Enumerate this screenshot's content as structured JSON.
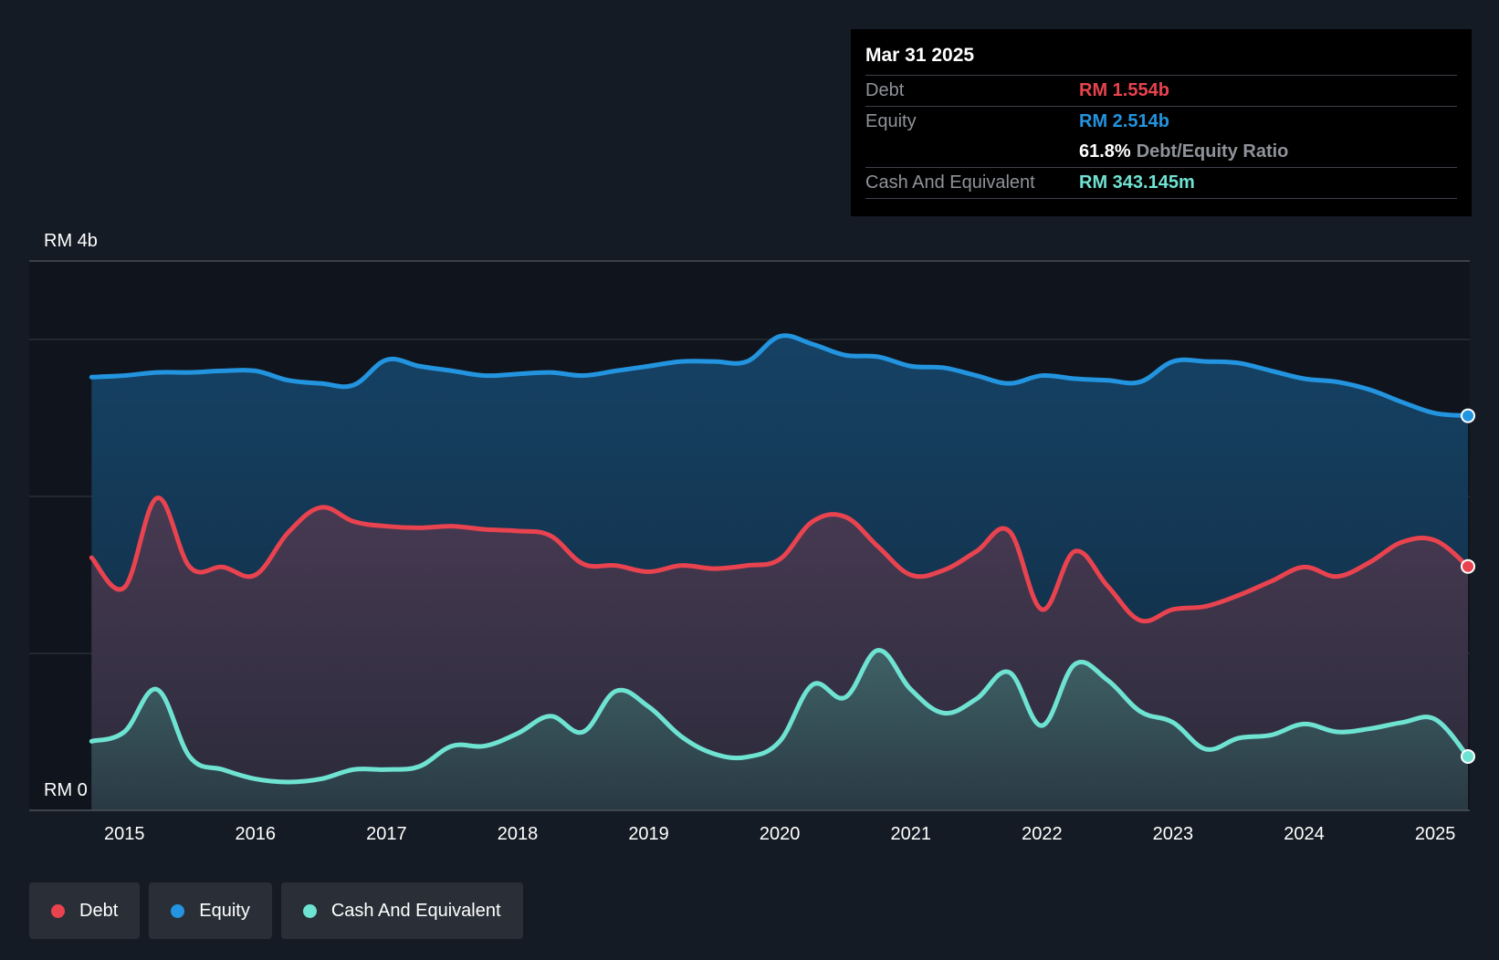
{
  "tooltip": {
    "date": "Mar 31 2025",
    "rows": [
      {
        "label": "Debt",
        "value": "RM 1.554b",
        "color": "#e8434f"
      },
      {
        "label": "Equity",
        "value": "RM 2.514b",
        "color": "#2394df"
      }
    ],
    "ratio": {
      "value": "61.8%",
      "label": "Debt/Equity Ratio"
    },
    "cash": {
      "label": "Cash And Equivalent",
      "value": "RM 343.145m",
      "color": "#6fe3d2"
    }
  },
  "legend": [
    {
      "label": "Debt",
      "color": "#e8434f"
    },
    {
      "label": "Equity",
      "color": "#2394df"
    },
    {
      "label": "Cash And Equivalent",
      "color": "#6fe3d2"
    }
  ],
  "chart_data": {
    "type": "area",
    "ylim": [
      0,
      3.5
    ],
    "y_tick_labels": [
      {
        "value": 3.5,
        "label": "RM 4b"
      },
      {
        "value": 0,
        "label": "RM 0"
      }
    ],
    "y_gridlines": [
      0,
      1,
      2,
      3,
      3.5
    ],
    "xlim": [
      2014.72,
      2025.25
    ],
    "x_ticks": [
      2015,
      2016,
      2017,
      2018,
      2019,
      2020,
      2021,
      2022,
      2023,
      2024,
      2025
    ],
    "x_tick_labels": [
      "2015",
      "2016",
      "2017",
      "2018",
      "2019",
      "2020",
      "2021",
      "2022",
      "2023",
      "2024",
      "2025"
    ],
    "series": [
      {
        "name": "Equity",
        "color": "#2394df",
        "x": [
          2014.75,
          2015.0,
          2015.25,
          2015.5,
          2015.75,
          2016.0,
          2016.25,
          2016.5,
          2016.75,
          2017.0,
          2017.25,
          2017.5,
          2017.75,
          2018.0,
          2018.25,
          2018.5,
          2018.75,
          2019.0,
          2019.25,
          2019.5,
          2019.75,
          2020.0,
          2020.25,
          2020.5,
          2020.75,
          2021.0,
          2021.25,
          2021.5,
          2021.75,
          2022.0,
          2022.25,
          2022.5,
          2022.75,
          2023.0,
          2023.25,
          2023.5,
          2023.75,
          2024.0,
          2024.25,
          2024.5,
          2024.75,
          2025.0,
          2025.25
        ],
        "values": [
          2.76,
          2.77,
          2.79,
          2.79,
          2.8,
          2.8,
          2.74,
          2.72,
          2.71,
          2.87,
          2.83,
          2.8,
          2.77,
          2.78,
          2.79,
          2.77,
          2.8,
          2.83,
          2.86,
          2.86,
          2.86,
          3.02,
          2.97,
          2.9,
          2.89,
          2.83,
          2.82,
          2.77,
          2.72,
          2.77,
          2.75,
          2.74,
          2.73,
          2.86,
          2.86,
          2.85,
          2.8,
          2.75,
          2.73,
          2.68,
          2.6,
          2.53,
          2.514
        ]
      },
      {
        "name": "Debt",
        "color": "#e8434f",
        "x": [
          2014.75,
          2015.0,
          2015.25,
          2015.5,
          2015.75,
          2016.0,
          2016.25,
          2016.5,
          2016.75,
          2017.0,
          2017.25,
          2017.5,
          2017.75,
          2018.0,
          2018.25,
          2018.5,
          2018.75,
          2019.0,
          2019.25,
          2019.5,
          2019.75,
          2020.0,
          2020.25,
          2020.5,
          2020.75,
          2021.0,
          2021.25,
          2021.5,
          2021.75,
          2022.0,
          2022.25,
          2022.5,
          2022.75,
          2023.0,
          2023.25,
          2023.5,
          2023.75,
          2024.0,
          2024.25,
          2024.5,
          2024.75,
          2025.0,
          2025.25
        ],
        "values": [
          1.61,
          1.42,
          1.99,
          1.55,
          1.55,
          1.5,
          1.77,
          1.93,
          1.84,
          1.81,
          1.8,
          1.81,
          1.79,
          1.78,
          1.75,
          1.57,
          1.56,
          1.52,
          1.56,
          1.54,
          1.56,
          1.6,
          1.84,
          1.87,
          1.68,
          1.5,
          1.53,
          1.65,
          1.78,
          1.28,
          1.65,
          1.43,
          1.21,
          1.28,
          1.3,
          1.37,
          1.46,
          1.55,
          1.49,
          1.58,
          1.71,
          1.72,
          1.554
        ]
      },
      {
        "name": "Cash And Equivalent",
        "color": "#6fe3d2",
        "x": [
          2014.75,
          2015.0,
          2015.25,
          2015.5,
          2015.75,
          2016.0,
          2016.25,
          2016.5,
          2016.75,
          2017.0,
          2017.25,
          2017.5,
          2017.75,
          2018.0,
          2018.25,
          2018.5,
          2018.75,
          2019.0,
          2019.25,
          2019.5,
          2019.75,
          2020.0,
          2020.25,
          2020.5,
          2020.75,
          2021.0,
          2021.25,
          2021.5,
          2021.75,
          2022.0,
          2022.25,
          2022.5,
          2022.75,
          2023.0,
          2023.25,
          2023.5,
          2023.75,
          2024.0,
          2024.25,
          2024.5,
          2024.75,
          2025.0,
          2025.25
        ],
        "values": [
          0.44,
          0.5,
          0.77,
          0.34,
          0.26,
          0.2,
          0.18,
          0.2,
          0.26,
          0.26,
          0.28,
          0.41,
          0.41,
          0.49,
          0.6,
          0.5,
          0.76,
          0.66,
          0.47,
          0.36,
          0.34,
          0.44,
          0.8,
          0.72,
          1.02,
          0.77,
          0.62,
          0.71,
          0.88,
          0.54,
          0.93,
          0.83,
          0.63,
          0.56,
          0.39,
          0.46,
          0.48,
          0.55,
          0.5,
          0.52,
          0.56,
          0.58,
          0.343
        ]
      }
    ]
  }
}
